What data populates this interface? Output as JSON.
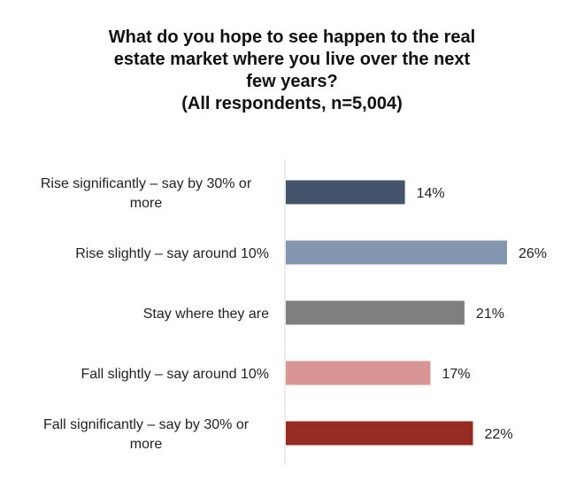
{
  "chart_data": {
    "type": "bar",
    "orientation": "horizontal",
    "title_lines": [
      "What do you hope to see happen to the real",
      "estate market where you live over the next",
      "few years?",
      "(All respondents, n=5,004)"
    ],
    "categories": [
      [
        "Rise significantly – say by 30% or",
        "more"
      ],
      [
        "Rise slightly – say around 10%"
      ],
      [
        "Stay where they are"
      ],
      [
        "Fall slightly – say around 10%"
      ],
      [
        "Fall significantly – say by 30% or",
        "more"
      ]
    ],
    "values": [
      14,
      26,
      21,
      17,
      22
    ],
    "value_labels": [
      "14%",
      "26%",
      "21%",
      "17%",
      "22%"
    ],
    "colors": [
      "#44546A",
      "#8497B0",
      "#7F7F7F",
      "#D99594",
      "#962B24"
    ],
    "xlim": [
      0,
      26
    ],
    "grid": false,
    "legend": "none"
  }
}
